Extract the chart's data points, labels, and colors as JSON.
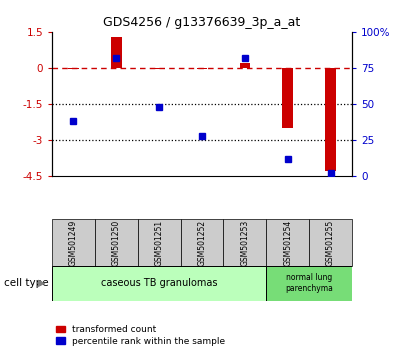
{
  "title": "GDS4256 / g13376639_3p_a_at",
  "samples": [
    "GSM501249",
    "GSM501250",
    "GSM501251",
    "GSM501252",
    "GSM501253",
    "GSM501254",
    "GSM501255"
  ],
  "transformed_count": [
    -0.05,
    1.3,
    -0.05,
    -0.05,
    0.2,
    -2.5,
    -4.3
  ],
  "percentile_rank": [
    38,
    82,
    48,
    28,
    82,
    12,
    2
  ],
  "ylim_left": [
    -4.5,
    1.5
  ],
  "yticks_left": [
    1.5,
    0,
    -1.5,
    -3,
    -4.5
  ],
  "ytick_labels_left": [
    "1.5",
    "0",
    "-1.5",
    "-3",
    "-4.5"
  ],
  "ylim_right": [
    0,
    100
  ],
  "yticks_right": [
    100,
    75,
    50,
    25,
    0
  ],
  "ytick_labels_right": [
    "100%",
    "75",
    "50",
    "25",
    "0"
  ],
  "bar_color_red": "#cc0000",
  "bar_color_blue": "#0000cc",
  "dashed_line_color": "#cc0000",
  "dotted_line_color": "#000000",
  "group1_label": "caseous TB granulomas",
  "group2_label": "normal lung\nparenchyma",
  "cell_type_label": "cell type",
  "legend_red": "transformed count",
  "legend_blue": "percentile rank within the sample",
  "bar_width": 0.25,
  "group1_color": "#bbffbb",
  "group2_color": "#77dd77",
  "tick_bg_color": "#cccccc",
  "bg_color": "#ffffff"
}
